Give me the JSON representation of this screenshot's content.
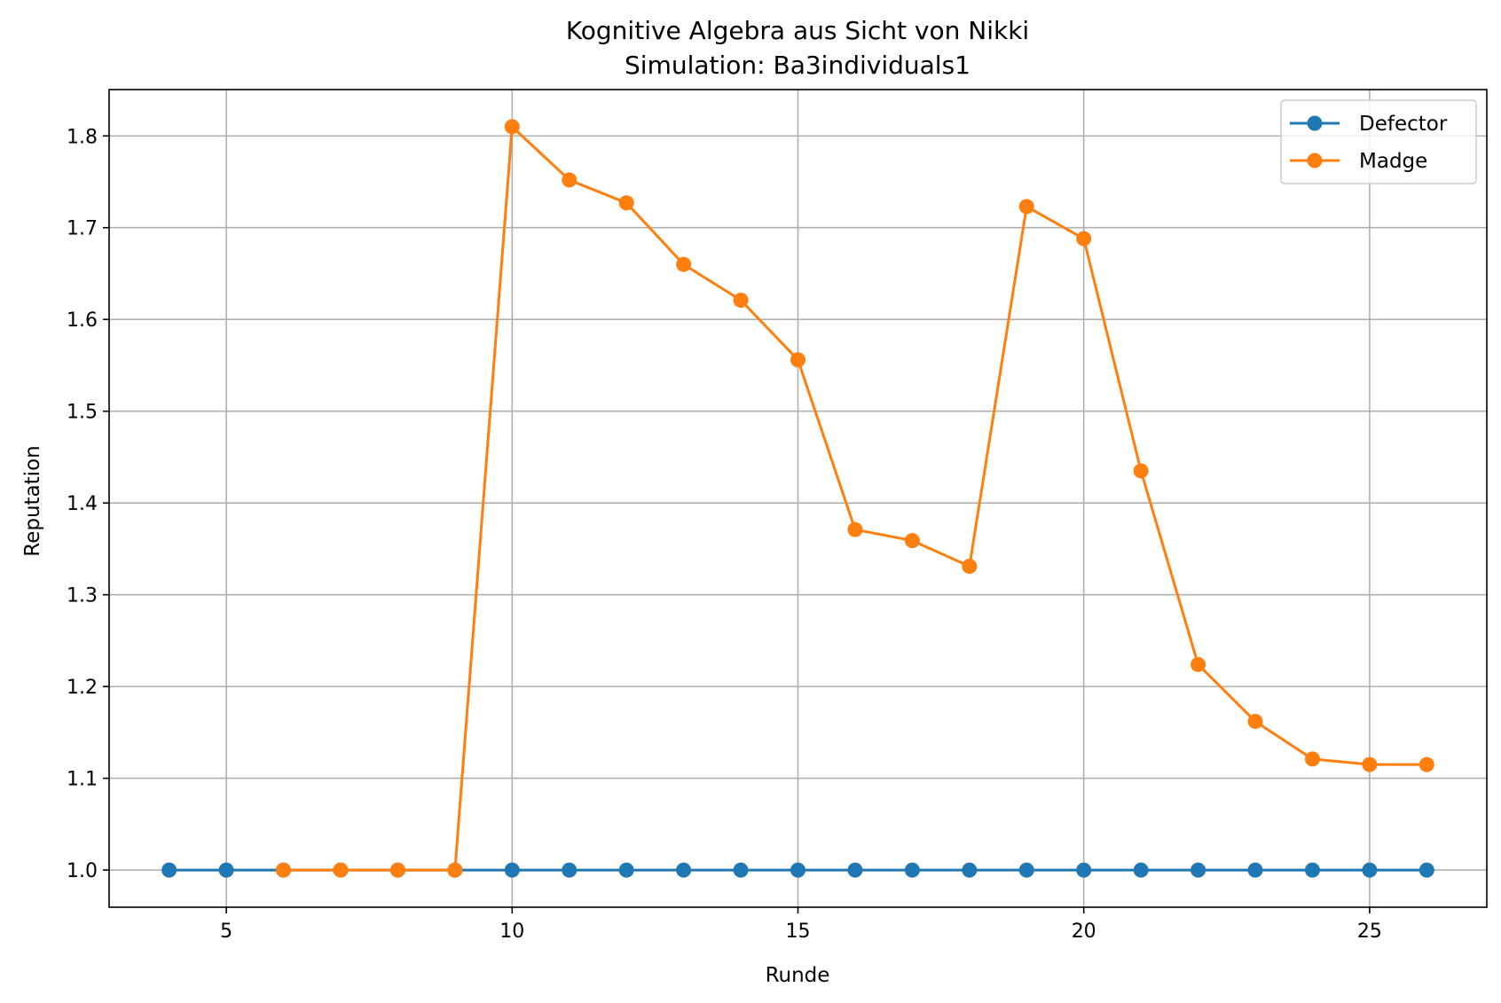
{
  "chart_data": {
    "type": "line",
    "title": "Kognitive Algebra aus Sicht von Nikki",
    "subtitle": "Simulation: Ba3individuals1",
    "xlabel": "Runde",
    "ylabel": "Reputation",
    "xlim": [
      2.95,
      27.05
    ],
    "ylim": [
      0.9595,
      1.8505
    ],
    "xticks": [
      5,
      10,
      15,
      20,
      25
    ],
    "yticks": [
      1.0,
      1.1,
      1.2,
      1.3,
      1.4,
      1.5,
      1.6,
      1.7,
      1.8
    ],
    "grid": true,
    "legend_position": "top-right",
    "series": [
      {
        "name": "Defector",
        "color": "#1f77b4",
        "x": [
          4,
          5,
          6,
          7,
          8,
          9,
          10,
          11,
          12,
          13,
          14,
          15,
          16,
          17,
          18,
          19,
          20,
          21,
          22,
          23,
          24,
          25,
          26
        ],
        "y": [
          1.0,
          1.0,
          1.0,
          1.0,
          1.0,
          1.0,
          1.0,
          1.0,
          1.0,
          1.0,
          1.0,
          1.0,
          1.0,
          1.0,
          1.0,
          1.0,
          1.0,
          1.0,
          1.0,
          1.0,
          1.0,
          1.0,
          1.0
        ]
      },
      {
        "name": "Madge",
        "color": "#ff7f0e",
        "x": [
          6,
          7,
          8,
          9,
          10,
          11,
          12,
          13,
          14,
          15,
          16,
          17,
          18,
          19,
          20,
          21,
          22,
          23,
          24,
          25,
          26
        ],
        "y": [
          1.0,
          1.0,
          1.0,
          1.0,
          1.81,
          1.752,
          1.727,
          1.66,
          1.621,
          1.556,
          1.371,
          1.359,
          1.331,
          1.723,
          1.688,
          1.435,
          1.224,
          1.162,
          1.121,
          1.115,
          1.115
        ]
      }
    ]
  }
}
